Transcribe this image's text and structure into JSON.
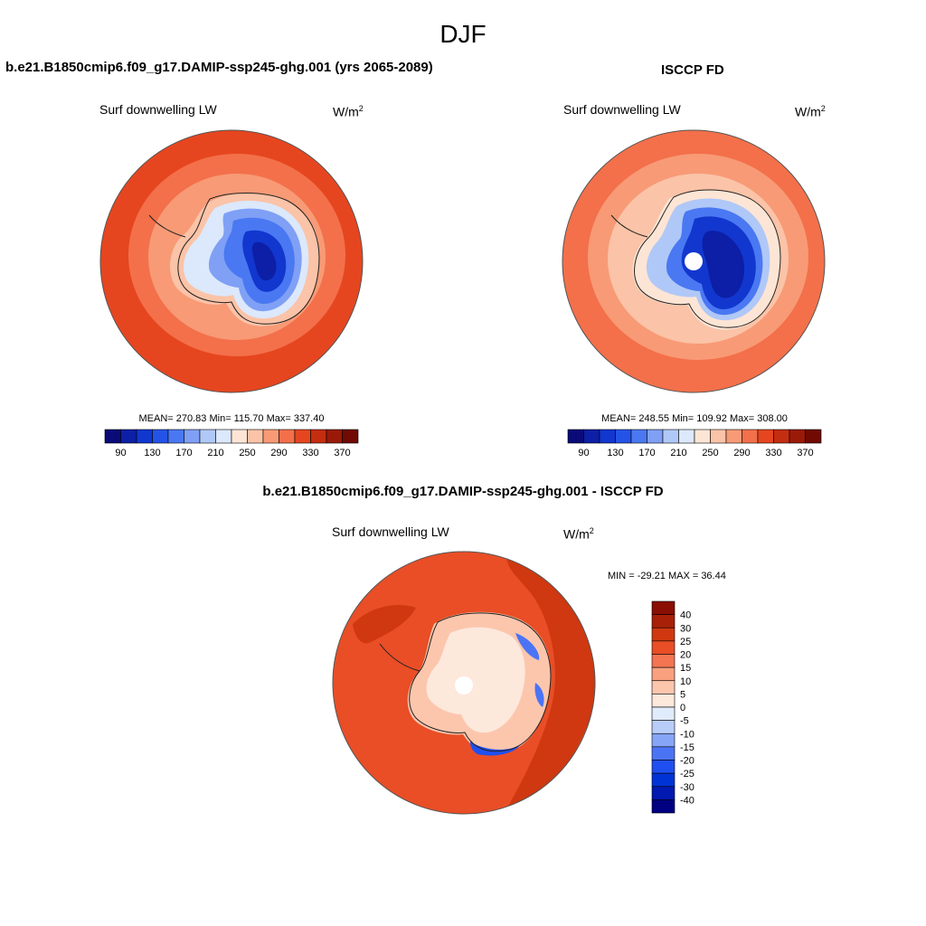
{
  "figure": {
    "title": "DJF",
    "left_title": "b.e21.B1850cmip6.f09_g17.DAMIP-ssp245-ghg.001 (yrs 2065-2089)",
    "right_title": "ISCCP FD",
    "diff_title": "b.e21.B1850cmip6.f09_g17.DAMIP-ssp245-ghg.001 - ISCCP FD"
  },
  "chart_data": [
    {
      "type": "heatmap",
      "projection": "south-polar-stereographic",
      "variable": "Surf downwelling LW",
      "units": "W/m",
      "units_exponent": "2",
      "stats_text": "MEAN= 270.83  Min= 115.70  Max= 337.40",
      "stats": {
        "mean": 270.83,
        "min": 115.7,
        "max": 337.4
      },
      "levels": [
        90,
        110,
        130,
        150,
        170,
        190,
        210,
        230,
        250,
        270,
        290,
        310,
        330,
        350,
        370
      ],
      "tick_labels": [
        "90",
        "130",
        "170",
        "210",
        "250",
        "290",
        "330",
        "370"
      ],
      "colors": [
        "#0a0a78",
        "#0c1fa6",
        "#1237cf",
        "#2453e8",
        "#4a78f2",
        "#7fa0f5",
        "#b0c8f7",
        "#dce8fb",
        "#fde5d5",
        "#fbc3a7",
        "#f89a76",
        "#f3704a",
        "#e6461f",
        "#c42d10",
        "#9a1a08",
        "#700a02"
      ]
    },
    {
      "type": "heatmap",
      "projection": "south-polar-stereographic",
      "variable": "Surf downwelling LW",
      "units": "W/m",
      "units_exponent": "2",
      "stats_text": "MEAN= 248.55  Min= 109.92  Max= 308.00",
      "stats": {
        "mean": 248.55,
        "min": 109.92,
        "max": 308.0
      },
      "levels": [
        90,
        110,
        130,
        150,
        170,
        190,
        210,
        230,
        250,
        270,
        290,
        310,
        330,
        350,
        370
      ],
      "tick_labels": [
        "90",
        "130",
        "170",
        "210",
        "250",
        "290",
        "330",
        "370"
      ],
      "colors": [
        "#0a0a78",
        "#0c1fa6",
        "#1237cf",
        "#2453e8",
        "#4a78f2",
        "#7fa0f5",
        "#b0c8f7",
        "#dce8fb",
        "#fde5d5",
        "#fbc3a7",
        "#f89a76",
        "#f3704a",
        "#e6461f",
        "#c42d10",
        "#9a1a08",
        "#700a02"
      ]
    },
    {
      "type": "heatmap",
      "projection": "south-polar-stereographic",
      "variable": "Surf downwelling LW",
      "units": "W/m",
      "units_exponent": "2",
      "stats_text": "MIN = -29.21 MAX =  36.44",
      "stats": {
        "min": -29.21,
        "max": 36.44
      },
      "levels": [
        -40,
        -30,
        -25,
        -20,
        -15,
        -10,
        -5,
        0,
        5,
        10,
        15,
        20,
        25,
        30,
        40
      ],
      "tick_labels": [
        "40",
        "30",
        "25",
        "20",
        "15",
        "10",
        "5",
        "0",
        "-5",
        "-10",
        "-15",
        "-20",
        "-25",
        "-30",
        "-40"
      ],
      "colors": [
        "#000080",
        "#0019b0",
        "#0033d6",
        "#1f4ff0",
        "#4b74f5",
        "#87a5f7",
        "#b9cdf9",
        "#e0ebfb",
        "#fde8dc",
        "#fcc6ad",
        "#f9a17f",
        "#f47552",
        "#e94e26",
        "#cf3810",
        "#a82008",
        "#8a0e04"
      ]
    }
  ]
}
